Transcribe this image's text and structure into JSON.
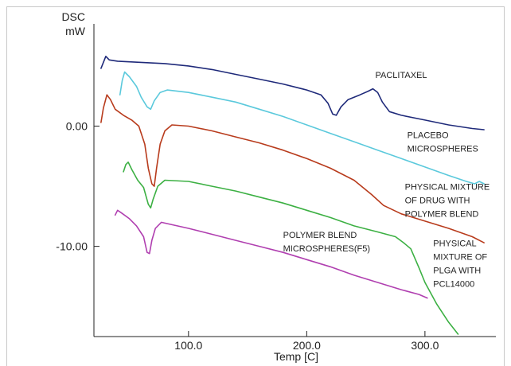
{
  "chart_data": {
    "type": "line",
    "title": "",
    "ylabel_lines": [
      "DSC",
      "mW"
    ],
    "xlabel": "Temp [C]",
    "xlim": [
      20,
      360
    ],
    "ylim": [
      -17.5,
      8.5
    ],
    "xticks": [
      {
        "value": 100,
        "label": "100.0"
      },
      {
        "value": 200,
        "label": "200.0"
      },
      {
        "value": 300,
        "label": "300.0"
      }
    ],
    "yticks": [
      {
        "value": 0,
        "label": "0.00"
      },
      {
        "value": -10,
        "label": "-10.00"
      }
    ],
    "grid": false,
    "series": [
      {
        "name": "PACLITAXEL",
        "color": "#1f2a7a",
        "points": [
          [
            26,
            4.8
          ],
          [
            28,
            5.3
          ],
          [
            30,
            5.8
          ],
          [
            33,
            5.5
          ],
          [
            40,
            5.4
          ],
          [
            60,
            5.3
          ],
          [
            80,
            5.2
          ],
          [
            100,
            5.0
          ],
          [
            120,
            4.7
          ],
          [
            140,
            4.3
          ],
          [
            160,
            3.9
          ],
          [
            180,
            3.5
          ],
          [
            200,
            3.0
          ],
          [
            212,
            2.6
          ],
          [
            218,
            1.9
          ],
          [
            222,
            1.0
          ],
          [
            225,
            0.9
          ],
          [
            229,
            1.6
          ],
          [
            235,
            2.2
          ],
          [
            245,
            2.6
          ],
          [
            252,
            2.9
          ],
          [
            256,
            3.1
          ],
          [
            260,
            2.8
          ],
          [
            264,
            2.0
          ],
          [
            270,
            1.2
          ],
          [
            280,
            0.9
          ],
          [
            300,
            0.5
          ],
          [
            320,
            0.1
          ],
          [
            340,
            -0.2
          ],
          [
            350,
            -0.3
          ]
        ]
      },
      {
        "name": "PLACEBO MICROSPHERES",
        "color": "#5bc9dc",
        "points": [
          [
            42,
            2.6
          ],
          [
            44,
            3.8
          ],
          [
            46,
            4.5
          ],
          [
            50,
            4.1
          ],
          [
            56,
            3.3
          ],
          [
            60,
            2.4
          ],
          [
            65,
            1.6
          ],
          [
            68,
            1.4
          ],
          [
            71,
            2.1
          ],
          [
            76,
            2.8
          ],
          [
            82,
            3.0
          ],
          [
            100,
            2.8
          ],
          [
            120,
            2.4
          ],
          [
            140,
            2.0
          ],
          [
            160,
            1.4
          ],
          [
            180,
            0.8
          ],
          [
            200,
            0.1
          ],
          [
            220,
            -0.6
          ],
          [
            240,
            -1.3
          ],
          [
            260,
            -2.0
          ],
          [
            280,
            -2.7
          ],
          [
            300,
            -3.4
          ],
          [
            320,
            -4.1
          ],
          [
            335,
            -4.6
          ],
          [
            342,
            -4.8
          ],
          [
            346,
            -4.6
          ],
          [
            350,
            -4.8
          ]
        ]
      },
      {
        "name": "PHYSICAL MIXTURE OF DRUG WITH POLYMER BLEND",
        "color": "#b83b1c",
        "points": [
          [
            26,
            0.3
          ],
          [
            28,
            1.5
          ],
          [
            31,
            2.6
          ],
          [
            34,
            2.2
          ],
          [
            38,
            1.4
          ],
          [
            45,
            0.9
          ],
          [
            52,
            0.5
          ],
          [
            58,
            0.0
          ],
          [
            63,
            -1.5
          ],
          [
            66,
            -3.5
          ],
          [
            69,
            -4.8
          ],
          [
            71,
            -5.0
          ],
          [
            73,
            -3.5
          ],
          [
            76,
            -1.5
          ],
          [
            80,
            -0.4
          ],
          [
            86,
            0.1
          ],
          [
            100,
            0.0
          ],
          [
            120,
            -0.4
          ],
          [
            140,
            -0.9
          ],
          [
            160,
            -1.4
          ],
          [
            180,
            -2.0
          ],
          [
            200,
            -2.7
          ],
          [
            220,
            -3.5
          ],
          [
            240,
            -4.5
          ],
          [
            255,
            -5.7
          ],
          [
            265,
            -6.6
          ],
          [
            280,
            -7.3
          ],
          [
            300,
            -7.9
          ],
          [
            320,
            -8.5
          ],
          [
            340,
            -9.2
          ],
          [
            350,
            -9.7
          ]
        ]
      },
      {
        "name": "PHYSICAL MIXTURE OF PLGA WITH PCL14000",
        "color": "#3cb043",
        "points": [
          [
            45,
            -3.8
          ],
          [
            47,
            -3.2
          ],
          [
            49,
            -3.0
          ],
          [
            52,
            -3.6
          ],
          [
            57,
            -4.5
          ],
          [
            62,
            -5.1
          ],
          [
            66,
            -6.5
          ],
          [
            68,
            -6.8
          ],
          [
            70,
            -6.1
          ],
          [
            74,
            -5.0
          ],
          [
            80,
            -4.5
          ],
          [
            100,
            -4.6
          ],
          [
            120,
            -5.0
          ],
          [
            140,
            -5.4
          ],
          [
            160,
            -5.9
          ],
          [
            180,
            -6.4
          ],
          [
            200,
            -7.0
          ],
          [
            220,
            -7.6
          ],
          [
            240,
            -8.3
          ],
          [
            260,
            -8.8
          ],
          [
            275,
            -9.2
          ],
          [
            282,
            -9.7
          ],
          [
            288,
            -10.2
          ],
          [
            295,
            -11.8
          ],
          [
            300,
            -13.0
          ],
          [
            310,
            -14.8
          ],
          [
            320,
            -16.3
          ],
          [
            328,
            -17.3
          ]
        ]
      },
      {
        "name": "POLYMER BLEND MICROSPHERES(F5)",
        "color": "#b03fb0",
        "points": [
          [
            38,
            -7.4
          ],
          [
            40,
            -7.0
          ],
          [
            43,
            -7.2
          ],
          [
            50,
            -7.7
          ],
          [
            56,
            -8.3
          ],
          [
            62,
            -9.2
          ],
          [
            65,
            -10.5
          ],
          [
            67,
            -10.6
          ],
          [
            69,
            -9.5
          ],
          [
            72,
            -8.5
          ],
          [
            77,
            -8.0
          ],
          [
            86,
            -8.2
          ],
          [
            100,
            -8.5
          ],
          [
            120,
            -9.0
          ],
          [
            140,
            -9.5
          ],
          [
            160,
            -10.0
          ],
          [
            180,
            -10.5
          ],
          [
            200,
            -11.1
          ],
          [
            220,
            -11.7
          ],
          [
            240,
            -12.4
          ],
          [
            260,
            -13.0
          ],
          [
            280,
            -13.6
          ],
          [
            295,
            -14.0
          ],
          [
            302,
            -14.3
          ]
        ]
      }
    ],
    "annotations": [
      {
        "lines": [
          "PACLITAXEL"
        ],
        "x": 258,
        "y": 4.0
      },
      {
        "lines": [
          "PLACEBO",
          "MICROSPHERES"
        ],
        "x": 285,
        "y": -1.0
      },
      {
        "lines": [
          "PHYSICAL MIXTURE",
          "OF DRUG WITH",
          "POLYMER BLEND"
        ],
        "x": 283,
        "y": -5.3
      },
      {
        "lines": [
          "POLYMER BLEND",
          "MICROSPHERES(F5)"
        ],
        "x": 180,
        "y": -9.3
      },
      {
        "lines": [
          "PHYSICAL",
          "MIXTURE OF",
          "PLGA WITH",
          "PCL14000"
        ],
        "x": 307,
        "y": -10.0
      }
    ]
  }
}
